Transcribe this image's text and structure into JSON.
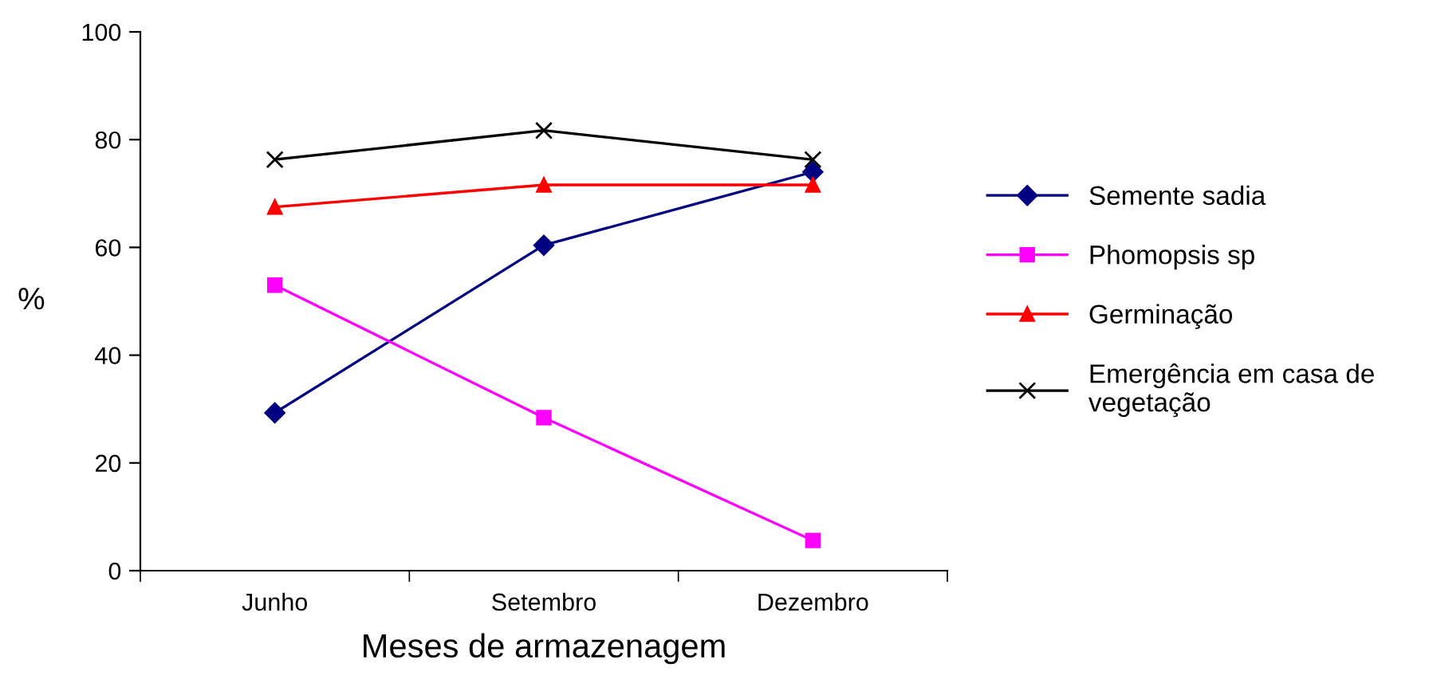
{
  "chart_data": {
    "type": "line",
    "xlabel": "Meses de armazenagem",
    "ylabel": "%",
    "categories": [
      "Junho",
      "Setembro",
      "Dezembro"
    ],
    "series": [
      {
        "name": "Semente sadia",
        "color": "#000080",
        "marker": "diamond",
        "values": [
          29.3,
          60.4,
          74
        ]
      },
      {
        "name": "Phomopsis sp",
        "color": "#ff00ff",
        "marker": "square",
        "values": [
          53,
          28.4,
          5.6
        ]
      },
      {
        "name": "Germinação",
        "color": "#ff0000",
        "marker": "triangle",
        "values": [
          67.5,
          71.6,
          71.6
        ]
      },
      {
        "name": "Emergência em casa de vegetação",
        "color": "#000000",
        "marker": "cross",
        "values": [
          76.3,
          81.7,
          76.3
        ]
      }
    ],
    "ylim": [
      0,
      100
    ],
    "yticks": [
      0,
      20,
      40,
      60,
      80,
      100
    ],
    "grid": false,
    "legend": "right",
    "line_style": "solid"
  }
}
